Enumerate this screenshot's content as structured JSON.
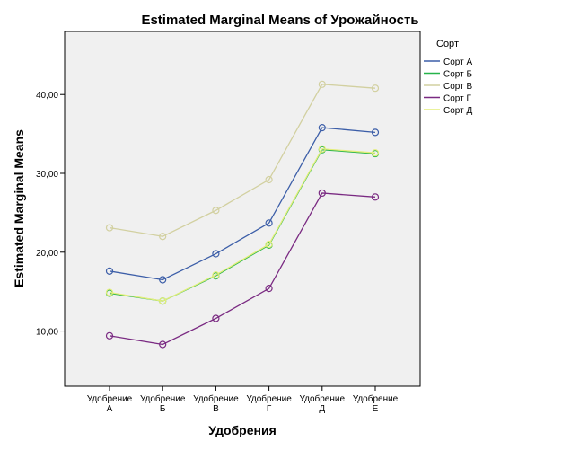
{
  "chart_data": {
    "type": "line",
    "title": "Estimated Marginal Means of Урожайность",
    "xlabel": "Удобрения",
    "ylabel": "Estimated Marginal Means",
    "categories": [
      [
        "Удобрение",
        "А"
      ],
      [
        "Удобрение",
        "Б"
      ],
      [
        "Удобрение",
        "В"
      ],
      [
        "Удобрение",
        "Г"
      ],
      [
        "Удобрение",
        "Д"
      ],
      [
        "Удобрение",
        "Е"
      ]
    ],
    "ylim": [
      3,
      48
    ],
    "yticks": [
      10,
      20,
      30,
      40
    ],
    "ytick_labels": [
      "10,00",
      "20,00",
      "30,00",
      "40,00"
    ],
    "grid": false,
    "legend": {
      "title": "Сорт",
      "placement": "right"
    },
    "series": [
      {
        "name": "Сорт А",
        "color": "#3c5ea8",
        "values": [
          17.6,
          16.5,
          19.8,
          23.7,
          35.8,
          35.2
        ]
      },
      {
        "name": "Сорт Б",
        "color": "#26b34a",
        "values": [
          14.8,
          13.8,
          17.0,
          20.9,
          33.0,
          32.5
        ]
      },
      {
        "name": "Сорт В",
        "color": "#d2d0a0",
        "values": [
          23.1,
          22.0,
          25.3,
          29.2,
          41.3,
          40.8
        ]
      },
      {
        "name": "Сорт Г",
        "color": "#7a2a82",
        "values": [
          9.4,
          8.3,
          11.6,
          15.4,
          27.5,
          27.0
        ]
      },
      {
        "name": "Сорт Д",
        "color": "#e3ee7a",
        "values": [
          14.9,
          13.8,
          17.1,
          21.0,
          33.1,
          32.6
        ]
      }
    ]
  }
}
